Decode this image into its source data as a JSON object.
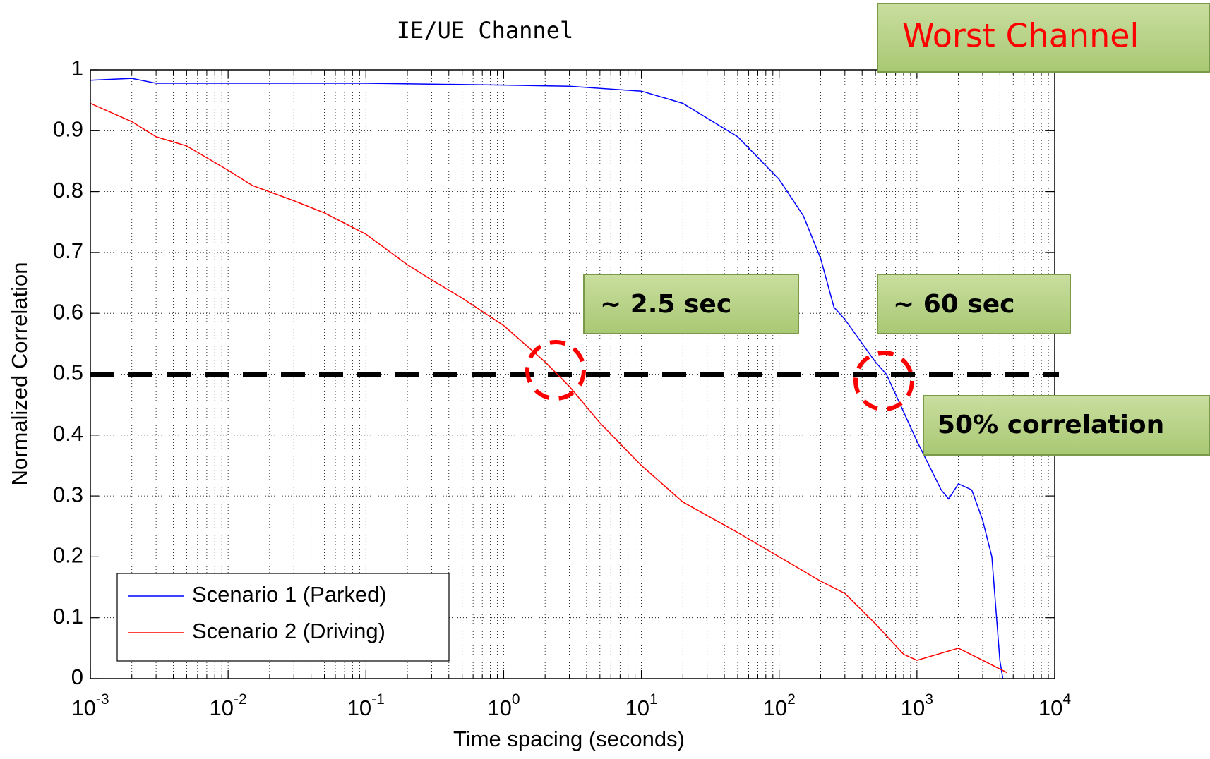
{
  "chart_data": {
    "type": "line",
    "title": "IE/UE Channel",
    "xlabel": "Time spacing (seconds)",
    "ylabel": "Normalized Correlation",
    "xscale": "log",
    "xlim": [
      0.001,
      10000
    ],
    "xticks": [
      {
        "value": 0.001,
        "label": "10",
        "exponent": "-3"
      },
      {
        "value": 0.01,
        "label": "10",
        "exponent": "-2"
      },
      {
        "value": 0.1,
        "label": "10",
        "exponent": "-1"
      },
      {
        "value": 1,
        "label": "10",
        "exponent": "0"
      },
      {
        "value": 10,
        "label": "10",
        "exponent": "1"
      },
      {
        "value": 100,
        "label": "10",
        "exponent": "2"
      },
      {
        "value": 1000,
        "label": "10",
        "exponent": "3"
      },
      {
        "value": 10000,
        "label": "10",
        "exponent": "4"
      }
    ],
    "ylim": [
      0,
      1
    ],
    "yticks": [
      0,
      0.1,
      0.2,
      0.3,
      0.4,
      0.5,
      0.6,
      0.7,
      0.8,
      0.9,
      1
    ],
    "grid": true,
    "legend": "lower left",
    "hline": 0.5,
    "annotations": [
      "Worst Channel",
      "~ 2.5 sec",
      "~ 60 sec",
      "50% correlation"
    ],
    "series": [
      {
        "name": "Scenario 1 (Parked)",
        "color": "#0000ff",
        "x": [
          0.001,
          0.002,
          0.003,
          0.01,
          0.1,
          1,
          3,
          10,
          20,
          50,
          100,
          150,
          200,
          250,
          300,
          500,
          600,
          1000,
          1500,
          1700,
          2000,
          2500,
          3000,
          3500,
          4000,
          4200
        ],
        "values": [
          0.983,
          0.986,
          0.978,
          0.978,
          0.978,
          0.975,
          0.973,
          0.965,
          0.945,
          0.89,
          0.82,
          0.76,
          0.69,
          0.61,
          0.59,
          0.52,
          0.5,
          0.39,
          0.31,
          0.295,
          0.32,
          0.31,
          0.26,
          0.2,
          0.03,
          0
        ]
      },
      {
        "name": "Scenario 2 (Driving)",
        "color": "#ff0000",
        "x": [
          0.001,
          0.002,
          0.003,
          0.005,
          0.01,
          0.015,
          0.03,
          0.05,
          0.1,
          0.2,
          0.3,
          0.5,
          1,
          2,
          3,
          5,
          10,
          20,
          50,
          100,
          200,
          300,
          500,
          800,
          1000,
          2000,
          3000,
          4500
        ],
        "values": [
          0.945,
          0.915,
          0.89,
          0.875,
          0.835,
          0.81,
          0.785,
          0.765,
          0.73,
          0.68,
          0.655,
          0.625,
          0.58,
          0.52,
          0.48,
          0.42,
          0.35,
          0.29,
          0.24,
          0.2,
          0.16,
          0.14,
          0.09,
          0.04,
          0.03,
          0.05,
          0.03,
          0.01
        ]
      }
    ]
  }
}
